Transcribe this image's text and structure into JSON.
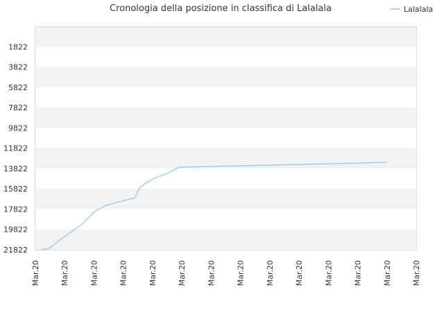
{
  "chart_data": {
    "type": "line",
    "title": "Cronologia della posizione in classifica di Lalalala",
    "xlabel": "",
    "ylabel": "",
    "y_inverted": true,
    "ylim": [
      -178,
      21822
    ],
    "y_ticks": [
      1822,
      3822,
      5822,
      7822,
      9822,
      11822,
      13822,
      15822,
      17822,
      19822,
      21822
    ],
    "x_tick_labels": [
      "Mar.20",
      "Mar.20",
      "Mar.20",
      "Mar.20",
      "Mar.20",
      "Mar.20",
      "Mar.20",
      "Mar.20",
      "Mar.20",
      "Mar.20",
      "Mar.20",
      "Mar.20",
      "Mar.20",
      "Mar.20"
    ],
    "legend_position": "top-right",
    "grid": true,
    "band_colors": [
      "#f2f2f2",
      "#ffffff"
    ],
    "series": [
      {
        "name": "Lalalala",
        "color": "#90c3ee",
        "x": [
          0.2,
          0.45,
          1.0,
          1.6,
          2.0,
          2.4,
          3.4,
          3.55,
          3.75,
          4.0,
          4.45,
          4.9,
          5.5,
          6.5,
          7.5,
          8.5,
          9.5,
          10.5,
          11.5,
          12.0
        ],
        "values": [
          21822,
          21722,
          20500,
          19300,
          18100,
          17450,
          16700,
          15750,
          15300,
          14850,
          14350,
          13700,
          13650,
          13580,
          13520,
          13460,
          13390,
          13320,
          13250,
          13200
        ]
      }
    ]
  }
}
